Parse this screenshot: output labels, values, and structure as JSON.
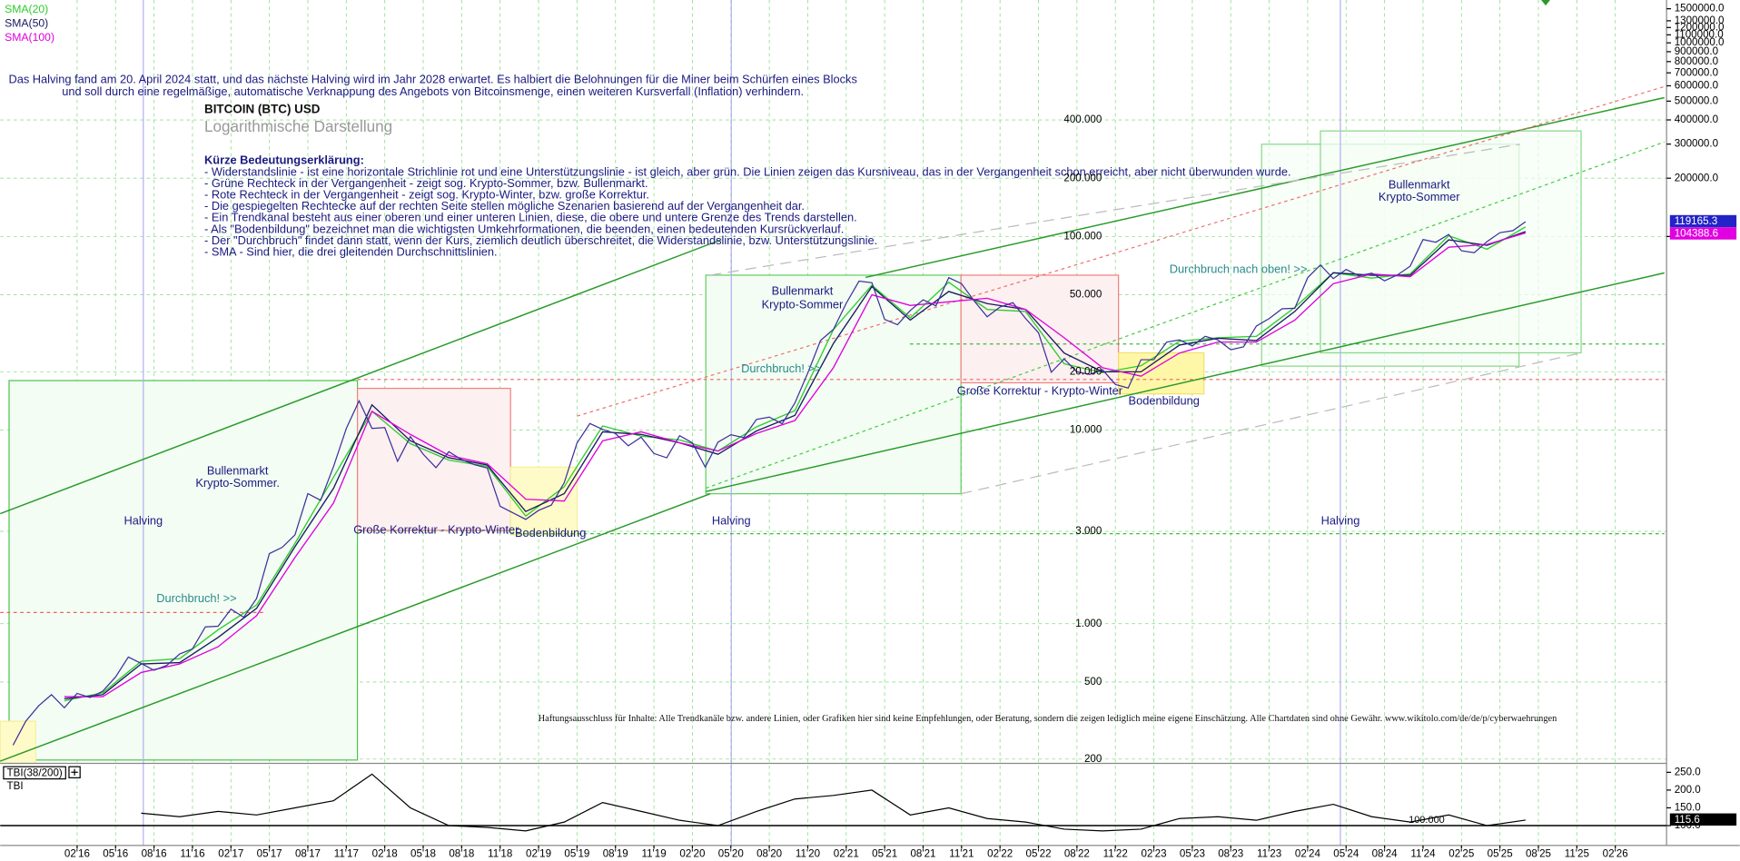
{
  "chart_data": [
    {
      "type": "line",
      "title": "BITCOIN (BTC) USD",
      "subtitle": "Logarithmische Darstellung",
      "log_scale": true,
      "grid": true,
      "legend": "top-left",
      "xlim": [
        "2015-08",
        "2026-06"
      ],
      "xticks": [
        {
          "value": "2016-02",
          "label": "02'16"
        },
        {
          "value": "2016-05",
          "label": "05'16"
        },
        {
          "value": "2016-08",
          "label": "08'16"
        },
        {
          "value": "2016-11",
          "label": "11'16"
        },
        {
          "value": "2017-02",
          "label": "02'17"
        },
        {
          "value": "2017-05",
          "label": "05'17"
        },
        {
          "value": "2017-08",
          "label": "08'17"
        },
        {
          "value": "2017-11",
          "label": "11'17"
        },
        {
          "value": "2018-02",
          "label": "02'18"
        },
        {
          "value": "2018-05",
          "label": "05'18"
        },
        {
          "value": "2018-08",
          "label": "08'18"
        },
        {
          "value": "2018-11",
          "label": "11'18"
        },
        {
          "value": "2019-02",
          "label": "02'19"
        },
        {
          "value": "2019-05",
          "label": "05'19"
        },
        {
          "value": "2019-08",
          "label": "08'19"
        },
        {
          "value": "2019-11",
          "label": "11'19"
        },
        {
          "value": "2020-02",
          "label": "02'20"
        },
        {
          "value": "2020-05",
          "label": "05'20"
        },
        {
          "value": "2020-08",
          "label": "08'20"
        },
        {
          "value": "2020-11",
          "label": "11'20"
        },
        {
          "value": "2021-02",
          "label": "02'21"
        },
        {
          "value": "2021-05",
          "label": "05'21"
        },
        {
          "value": "2021-08",
          "label": "08'21"
        },
        {
          "value": "2021-11",
          "label": "11'21"
        },
        {
          "value": "2022-02",
          "label": "02'22"
        },
        {
          "value": "2022-05",
          "label": "05'22"
        },
        {
          "value": "2022-08",
          "label": "08'22"
        },
        {
          "value": "2022-11",
          "label": "11'22"
        },
        {
          "value": "2023-02",
          "label": "02'23"
        },
        {
          "value": "2023-05",
          "label": "05'23"
        },
        {
          "value": "2023-08",
          "label": "08'23"
        },
        {
          "value": "2023-11",
          "label": "11'23"
        },
        {
          "value": "2024-02",
          "label": "02'24"
        },
        {
          "value": "2024-05",
          "label": "05'24"
        },
        {
          "value": "2024-08",
          "label": "08'24"
        },
        {
          "value": "2024-11",
          "label": "11'24"
        },
        {
          "value": "2025-02",
          "label": "02'25"
        },
        {
          "value": "2025-05",
          "label": "05'25"
        },
        {
          "value": "2025-08",
          "label": "08'25"
        },
        {
          "value": "2025-11",
          "label": "11'25"
        },
        {
          "value": "2026-02",
          "label": "02'26"
        }
      ],
      "ylim": [
        190,
        1600000
      ],
      "yticks": [
        {
          "value": 1500000,
          "label": "1500000.0"
        },
        {
          "value": 1300000,
          "label": "1300000.0"
        },
        {
          "value": 1200000,
          "label": "1200000.0"
        },
        {
          "value": 1100000,
          "label": "1100000.0"
        },
        {
          "value": 1000000,
          "label": "1000000.0"
        },
        {
          "value": 900000,
          "label": "900000.0"
        },
        {
          "value": 800000,
          "label": "800000.0"
        },
        {
          "value": 700000,
          "label": "700000.0"
        },
        {
          "value": 600000,
          "label": "600000.0"
        },
        {
          "value": 500000,
          "label": "500000.0"
        },
        {
          "value": 400000,
          "label": "400000.0"
        },
        {
          "value": 300000,
          "label": "300000.0"
        },
        {
          "value": 200000,
          "label": "200000.0"
        },
        {
          "value": 100000,
          "label": "100000.0"
        }
      ],
      "price_labels": [
        {
          "value": 400000,
          "label": "400.000"
        },
        {
          "value": 200000,
          "label": "200.000"
        },
        {
          "value": 100000,
          "label": "100.000"
        },
        {
          "value": 50000,
          "label": "50.000"
        },
        {
          "value": 20000,
          "label": "20.000"
        },
        {
          "value": 10000,
          "label": "10.000"
        },
        {
          "value": 3000,
          "label": "3.000"
        },
        {
          "value": 1000,
          "label": "1.000"
        },
        500,
        200
      ],
      "color": "#3b2f9a",
      "x": [
        "2015-09",
        "2015-10",
        "2015-11",
        "2015-12",
        "2016-01",
        "2016-02",
        "2016-03",
        "2016-04",
        "2016-05",
        "2016-06",
        "2016-07",
        "2016-08",
        "2016-09",
        "2016-10",
        "2016-11",
        "2016-12",
        "2017-01",
        "2017-02",
        "2017-03",
        "2017-04",
        "2017-05",
        "2017-06",
        "2017-07",
        "2017-08",
        "2017-09",
        "2017-10",
        "2017-11",
        "2017-12",
        "2018-01",
        "2018-02",
        "2018-03",
        "2018-04",
        "2018-05",
        "2018-06",
        "2018-07",
        "2018-08",
        "2018-09",
        "2018-10",
        "2018-11",
        "2018-12",
        "2019-01",
        "2019-02",
        "2019-03",
        "2019-04",
        "2019-05",
        "2019-06",
        "2019-07",
        "2019-08",
        "2019-09",
        "2019-10",
        "2019-11",
        "2019-12",
        "2020-01",
        "2020-02",
        "2020-03",
        "2020-04",
        "2020-05",
        "2020-06",
        "2020-07",
        "2020-08",
        "2020-09",
        "2020-10",
        "2020-11",
        "2020-12",
        "2021-01",
        "2021-02",
        "2021-03",
        "2021-04",
        "2021-05",
        "2021-06",
        "2021-07",
        "2021-08",
        "2021-09",
        "2021-10",
        "2021-11",
        "2021-12",
        "2022-01",
        "2022-02",
        "2022-03",
        "2022-04",
        "2022-05",
        "2022-06",
        "2022-07",
        "2022-08",
        "2022-09",
        "2022-10",
        "2022-11",
        "2022-12",
        "2023-01",
        "2023-02",
        "2023-03",
        "2023-04",
        "2023-05",
        "2023-06",
        "2023-07",
        "2023-08",
        "2023-09",
        "2023-10",
        "2023-11",
        "2023-12",
        "2024-01",
        "2024-02",
        "2024-03",
        "2024-04",
        "2024-05",
        "2024-06",
        "2024-07",
        "2024-08",
        "2024-09",
        "2024-10",
        "2024-11",
        "2024-12",
        "2025-01",
        "2025-02",
        "2025-03",
        "2025-04",
        "2025-05",
        "2025-06",
        "2025-07"
      ],
      "values": [
        236,
        314,
        377,
        430,
        368,
        437,
        416,
        448,
        531,
        673,
        624,
        575,
        609,
        698,
        742,
        963,
        970,
        1190,
        1080,
        1350,
        2300,
        2480,
        2875,
        4700,
        4340,
        6470,
        10200,
        14150,
        10200,
        10300,
        6900,
        9250,
        7500,
        6400,
        7730,
        7030,
        6630,
        6370,
        4040,
        3740,
        3460,
        3850,
        4100,
        5350,
        8570,
        10820,
        10080,
        9600,
        8290,
        9200,
        7570,
        7190,
        9350,
        8600,
        6440,
        8660,
        9460,
        9140,
        11350,
        11680,
        10780,
        13800,
        19700,
        29000,
        33100,
        45200,
        58800,
        57700,
        37300,
        35000,
        41500,
        47100,
        43800,
        61300,
        57000,
        46300,
        38500,
        43200,
        45500,
        37700,
        31800,
        19900,
        23300,
        20000,
        19400,
        20500,
        17200,
        16500,
        23100,
        23100,
        28500,
        29200,
        27200,
        30500,
        29200,
        26000,
        26900,
        34500,
        37700,
        42300,
        42600,
        61200,
        71300,
        60600,
        67500,
        62700,
        64600,
        59000,
        63300,
        70200,
        96400,
        93400,
        102400,
        84400,
        82500,
        94200,
        104600,
        107100,
        119165.3
      ],
      "series": [
        {
          "name": "SMA(20)",
          "color": "#2ecc2e",
          "x": [
            "2016-01",
            "2016-04",
            "2016-07",
            "2016-10",
            "2017-01",
            "2017-04",
            "2017-07",
            "2017-10",
            "2018-01",
            "2018-04",
            "2018-07",
            "2018-10",
            "2019-01",
            "2019-04",
            "2019-07",
            "2019-10",
            "2020-01",
            "2020-04",
            "2020-07",
            "2020-10",
            "2021-01",
            "2021-04",
            "2021-07",
            "2021-10",
            "2022-01",
            "2022-04",
            "2022-07",
            "2022-10",
            "2023-01",
            "2023-04",
            "2023-07",
            "2023-10",
            "2024-01",
            "2024-04",
            "2024-07",
            "2024-10",
            "2025-01",
            "2025-04",
            "2025-07"
          ],
          "values": [
            400,
            440,
            640,
            660,
            930,
            1250,
            2600,
            5700,
            12500,
            8500,
            7000,
            6500,
            3600,
            5100,
            10500,
            9300,
            8900,
            7800,
            10400,
            12600,
            33000,
            56000,
            38000,
            58000,
            42000,
            41000,
            22000,
            19800,
            21500,
            28800,
            30000,
            30500,
            43000,
            65000,
            61000,
            64000,
            101000,
            86000,
            112000
          ]
        },
        {
          "name": "SMA(50)",
          "color": "#1a1a60",
          "x": [
            "2016-01",
            "2016-04",
            "2016-07",
            "2016-10",
            "2017-01",
            "2017-04",
            "2017-07",
            "2017-10",
            "2018-01",
            "2018-04",
            "2018-07",
            "2018-10",
            "2019-01",
            "2019-04",
            "2019-07",
            "2019-10",
            "2020-01",
            "2020-04",
            "2020-07",
            "2020-10",
            "2021-01",
            "2021-04",
            "2021-07",
            "2021-10",
            "2022-01",
            "2022-04",
            "2022-07",
            "2022-10",
            "2023-01",
            "2023-04",
            "2023-07",
            "2023-10",
            "2024-01",
            "2024-04",
            "2024-07",
            "2024-10",
            "2025-01",
            "2025-04",
            "2025-07"
          ],
          "values": [
            410,
            430,
            620,
            630,
            850,
            1200,
            2500,
            5000,
            13500,
            8800,
            7200,
            6600,
            3800,
            4700,
            9800,
            9500,
            8600,
            7500,
            9900,
            11900,
            28000,
            55000,
            37000,
            52000,
            45000,
            42000,
            25000,
            20000,
            20000,
            27500,
            29800,
            29000,
            41000,
            65000,
            63000,
            63000,
            96000,
            90000,
            106000
          ]
        },
        {
          "name": "SMA(100)",
          "color": "#e000e0",
          "x": [
            "2016-01",
            "2016-04",
            "2016-07",
            "2016-10",
            "2017-01",
            "2017-04",
            "2017-07",
            "2017-10",
            "2018-01",
            "2018-04",
            "2018-07",
            "2018-10",
            "2019-01",
            "2019-04",
            "2019-07",
            "2019-10",
            "2020-01",
            "2020-04",
            "2020-07",
            "2020-10",
            "2021-01",
            "2021-04",
            "2021-07",
            "2021-10",
            "2022-01",
            "2022-04",
            "2022-07",
            "2022-10",
            "2023-01",
            "2023-04",
            "2023-07",
            "2023-10",
            "2024-01",
            "2024-04",
            "2024-07",
            "2024-10",
            "2025-01",
            "2025-04",
            "2025-07"
          ],
          "values": [
            420,
            420,
            560,
            620,
            760,
            1100,
            2200,
            4200,
            12500,
            9500,
            7400,
            6700,
            4400,
            4300,
            8800,
            9800,
            8600,
            7800,
            9600,
            11200,
            21000,
            50000,
            44000,
            46000,
            48000,
            42000,
            30000,
            21000,
            19000,
            25000,
            28500,
            28500,
            37000,
            57000,
            64000,
            62000,
            88000,
            91000,
            104388.6
          ]
        }
      ],
      "annotations": [
        "Das Halving fand am 20. April 2024 statt, und das nächste Halving wird im Jahr 2028 erwartet. Es halbiert die Belohnungen für die Miner beim Schürfen eines Blocks",
        "und soll durch eine regelmäßige, automatische Verknappung des Angebots von Bitcoinsmenge, einen weiteren Kursverfall (Inflation) verhindern.",
        "Halving",
        "Halving",
        "Halving",
        "Bullenmarkt",
        "Krypto-Sommer.",
        "Durchbruch! >>",
        "Große Korrektur - Krypto-Winter",
        "Bodenbildung",
        "Bullenmarkt",
        "Krypto-Sommer",
        "Durchbruch! >>",
        "Große Korrektur - Krypto-Winter",
        "Bodenbildung",
        "Durchbruch nach oben! >>",
        "Bullenmarkt",
        "Krypto-Sommer",
        "Haftungsausschluss für Inhalte: Alle Trendkanäle bzw. andere Linien, oder Grafiken hier sind keine Empfehlungen, oder Beratung, sondern die zeigen lediglich meine eigene Einschätzung. Alle Chartdaten sind ohne Gewähr.  www.wikitolo.com/de/de/p/cyberwaehrungen"
      ],
      "explanation": {
        "heading": "Kürze Bedeutungserklärung:",
        "lines": [
          "- Widerstandslinie - ist eine horizontale Strichlinie rot und eine Unterstützungslinie - ist gleich, aber grün. Die Linien zeigen das Kursniveau, das in der Vergangenheit schon erreicht, aber nicht überwunden wurde.",
          "- Grüne Rechteck in der Vergangenheit - zeigt sog. Krypto-Sommer, bzw. Bullenmarkt.",
          "- Rote Rechteck in der Vergangenheit - zeigt sog. Krypto-Winter, bzw. große Korrektur.",
          "- Die gespiegelten Rechtecke auf der rechten Seite stellen mögliche Szenarien basierend auf der Vergangenheit dar.",
          "- Ein Trendkanal besteht aus einer oberen und einer unteren Linien, diese, die obere und untere Grenze des Trends darstellen.",
          "- Als \"Bodenbildung\" bezeichnet man die wichtigsten Umkehrformationen, die beenden, einen bedeutenden Kursrückverlauf.",
          "- Der \"Durchbruch\" findet dann statt, wenn der Kurs, ziemlich deutlich überschreitet, die Widerstandslinie, bzw. Unterstützungslinie.",
          "- SMA - Sind hier, die drei gleitenden Durchschnittslinien."
        ]
      }
    },
    {
      "type": "line",
      "title": "TBI(38/200)",
      "label": "TBI",
      "color": "#000000",
      "ylim": [
        44,
        269
      ],
      "yticks": [
        {
          "value": 250,
          "label": "250.0"
        },
        {
          "value": 200,
          "label": "200.0"
        },
        {
          "value": 150,
          "label": "150.0"
        },
        {
          "value": 100,
          "label": "100.0"
        }
      ],
      "reference_line": {
        "value": 100,
        "label": "100.000"
      },
      "x": [
        "2016-07",
        "2016-10",
        "2017-01",
        "2017-04",
        "2017-07",
        "2017-10",
        "2018-01",
        "2018-04",
        "2018-07",
        "2018-10",
        "2019-01",
        "2019-04",
        "2019-07",
        "2019-10",
        "2020-01",
        "2020-04",
        "2020-07",
        "2020-10",
        "2021-01",
        "2021-04",
        "2021-07",
        "2021-10",
        "2022-01",
        "2022-04",
        "2022-07",
        "2022-10",
        "2023-01",
        "2023-04",
        "2023-07",
        "2023-10",
        "2024-01",
        "2024-04",
        "2024-07",
        "2024-10",
        "2025-01",
        "2025-04",
        "2025-07"
      ],
      "values": [
        135,
        125,
        140,
        130,
        150,
        170,
        245,
        150,
        100,
        95,
        85,
        110,
        165,
        140,
        115,
        100,
        140,
        175,
        185,
        200,
        130,
        150,
        120,
        110,
        90,
        85,
        90,
        120,
        125,
        115,
        140,
        160,
        125,
        110,
        130,
        100,
        115.6
      ]
    }
  ]
}
